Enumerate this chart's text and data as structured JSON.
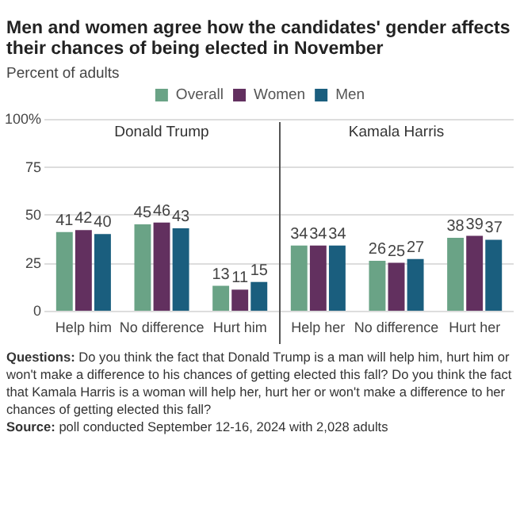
{
  "chart_data": {
    "type": "bar",
    "title": "Men and women agree how the candidates' gender affects their chances of being elected in November",
    "subtitle": "Percent of adults",
    "categories": [
      "Help him",
      "No difference",
      "Hurt him",
      "Help her",
      "No difference",
      "Hurt her"
    ],
    "series": [
      {
        "name": "Overall",
        "color": "#6aa386",
        "values": [
          41,
          45,
          13,
          34,
          26,
          38
        ]
      },
      {
        "name": "Women",
        "color": "#62305f",
        "values": [
          42,
          46,
          11,
          34,
          25,
          39
        ]
      },
      {
        "name": "Men",
        "color": "#1a5e7e",
        "values": [
          40,
          43,
          15,
          34,
          27,
          37
        ]
      }
    ],
    "ylim": [
      0,
      100
    ],
    "yticks": [
      0,
      25,
      50,
      75,
      {
        "value": 100,
        "label": "100%"
      }
    ],
    "grid": "y",
    "legend": "top",
    "data_labels": true,
    "annotations": [
      "Donald Trump",
      "Kamala Harris",
      "Questions: Do you think the fact that Donald Trump is a man will help him, hurt him or won't make a difference to his chances of getting elected this fall? Do you think the fact that Kamala Harris is a woman will help her, hurt her or won't make a difference to her chances of getting elected this fall?",
      "Source: poll conducted September 12-16, 2024 with 2,028 adults"
    ]
  }
}
